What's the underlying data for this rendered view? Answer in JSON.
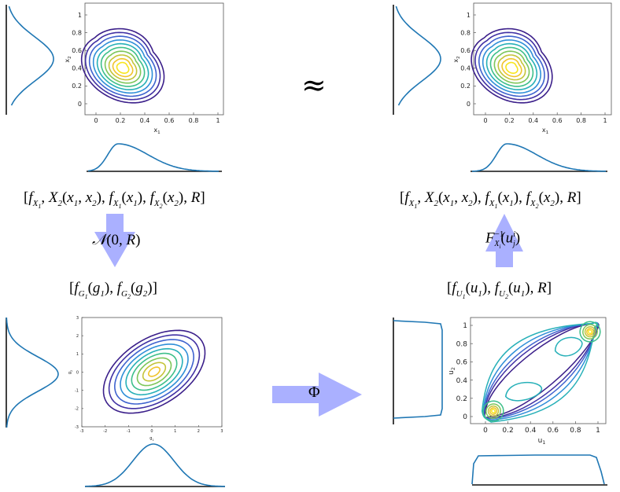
{
  "approx_symbol": "≈",
  "phi_label": "Φ",
  "colors": {
    "marginal": "#1f77b4",
    "arrow": "#aab0ff",
    "contours": [
      "#3b1f8a",
      "#4131a4",
      "#3f63cf",
      "#2f8fd8",
      "#27b0b8",
      "#3dbf8a",
      "#7dc65a",
      "#c4c43a",
      "#f0c42c",
      "#f7e51c"
    ]
  },
  "panels": {
    "top_left": {
      "x_label": "x1",
      "y_label": "x2",
      "x_ticks": [
        "0",
        "0.2",
        "0.4",
        "0.6",
        "0.8",
        "1"
      ],
      "y_ticks": [
        "0",
        "0.2",
        "0.4",
        "0.6",
        "0.8",
        "1"
      ]
    },
    "top_right": {
      "x_label": "x1",
      "y_label": "x2",
      "x_ticks": [
        "0",
        "0.2",
        "0.4",
        "0.6",
        "0.8",
        "1"
      ],
      "y_ticks": [
        "0",
        "0.2",
        "0.4",
        "0.6",
        "0.8",
        "1"
      ]
    },
    "bottom_left": {
      "x_label": "g1",
      "y_label": "g2",
      "x_ticks": [
        "-3",
        "-2",
        "-1",
        "0",
        "1",
        "2",
        "3"
      ],
      "y_ticks": [
        "-3",
        "-2",
        "-1",
        "0",
        "1",
        "2",
        "3"
      ]
    },
    "bottom_right": {
      "x_label": "u1",
      "y_label": "u2",
      "x_ticks": [
        "0",
        "0.2",
        "0.4",
        "0.6",
        "0.8",
        "1"
      ],
      "y_ticks": [
        "0",
        "0.2",
        "0.4",
        "0.6",
        "0.8",
        "1"
      ]
    }
  },
  "equations": {
    "top_left": "[fX1, X2(x1, x2), fX1(x1), fX2(x2), R]",
    "top_right": "[fX1, X2(x1, x2), fX1(x1), fX2(x2), R]",
    "left_arrow": "N(0, R)",
    "right_arrow": "F^-1 Xi (u^i j)",
    "bottom_left": "[fG1(g1), fG2(g2)]",
    "bottom_right": "[fU1(u1), fU2(u1), R]"
  }
}
